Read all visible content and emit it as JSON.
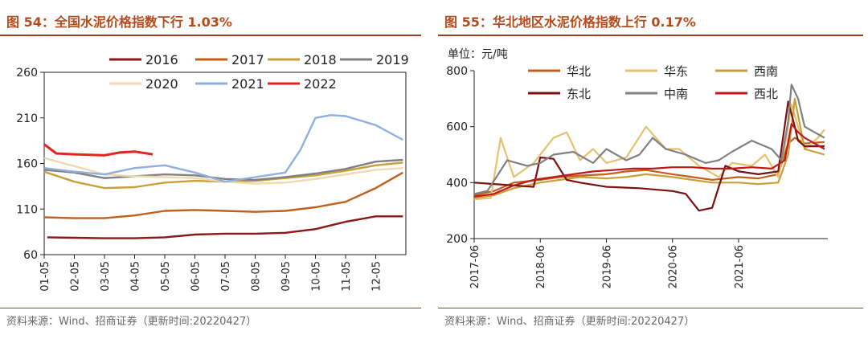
{
  "charts": [
    {
      "fig_title": "图 54：全国水泥价格指数下行 1.03%",
      "source": "资料来源：Wind、招商证券（更新时间:20220427）"
    },
    {
      "fig_title": "图 55：华北地区水泥价格指数上行 0.17%",
      "unit": "单位：元/吨",
      "source": "资料来源：Wind、招商证券（更新时间:20220427）"
    }
  ],
  "chart_data": [
    {
      "type": "line",
      "title": "图 54：全国水泥价格指数下行 1.03%",
      "ylim": [
        60,
        260
      ],
      "yticks": [
        "260",
        "210",
        "160",
        "110",
        "60"
      ],
      "xticks": [
        "01-05",
        "02-05",
        "03-05",
        "04-05",
        "05-05",
        "06-05",
        "07-05",
        "08-05",
        "09-05",
        "10-05",
        "11-05",
        "12-05"
      ],
      "grid": false,
      "legend": "top",
      "series": [
        {
          "name": "2016",
          "color": "#8b1a1a",
          "x": [
            0.1,
            1,
            2,
            3,
            4,
            5,
            6,
            7,
            8,
            9,
            10,
            11,
            11.9
          ],
          "values": [
            79,
            78.5,
            78,
            78,
            79,
            82,
            83,
            83,
            84,
            88,
            96,
            102,
            102
          ]
        },
        {
          "name": "2017",
          "color": "#c0601a",
          "x": [
            0,
            1,
            2,
            3,
            4,
            5,
            6,
            7,
            8,
            9,
            10,
            11,
            11.9
          ],
          "values": [
            101,
            100,
            100,
            103,
            108,
            109,
            108,
            107,
            108,
            112,
            118,
            133,
            150
          ]
        },
        {
          "name": "2018",
          "color": "#c8a038",
          "x": [
            0,
            1,
            2,
            3,
            4,
            5,
            6,
            7,
            8,
            9,
            10,
            11,
            11.9
          ],
          "values": [
            151,
            140,
            133,
            134,
            139,
            141,
            140,
            141,
            144,
            147,
            152,
            158,
            161
          ]
        },
        {
          "name": "2019",
          "color": "#808080",
          "x": [
            0,
            1,
            2,
            3,
            4,
            5,
            6,
            7,
            8,
            9,
            10,
            11,
            11.9
          ],
          "values": [
            153,
            150,
            144,
            146,
            148,
            147,
            143,
            142,
            145,
            149,
            154,
            162,
            164
          ]
        },
        {
          "name": "2020",
          "color": "#efd9b0",
          "x": [
            0,
            1,
            2,
            3,
            4,
            5,
            6,
            7,
            8,
            9,
            10,
            11,
            11.9
          ],
          "values": [
            166,
            157,
            148,
            146,
            145,
            144,
            140,
            138,
            139,
            143,
            148,
            153,
            155
          ]
        },
        {
          "name": "2021",
          "color": "#8fb0dc",
          "x": [
            0,
            1,
            2,
            3,
            4,
            5,
            6,
            7,
            8,
            8.5,
            9,
            9.5,
            10,
            11,
            11.9
          ],
          "values": [
            155,
            151,
            148,
            155,
            158,
            150,
            140,
            145,
            150,
            175,
            210,
            213,
            212,
            202,
            186
          ]
        },
        {
          "name": "2022",
          "color": "#e8221c",
          "x": [
            0,
            0.4,
            1,
            2,
            2.5,
            3,
            3.6
          ],
          "values": [
            181,
            171,
            170,
            169,
            172,
            173,
            170
          ]
        }
      ]
    },
    {
      "type": "line",
      "unit": "单位：元/吨",
      "ylim": [
        200,
        800
      ],
      "yticks": [
        "800",
        "600",
        "400",
        "200"
      ],
      "xticks": [
        "2017-06",
        "2018-06",
        "2019-06",
        "2020-06",
        "2021-06"
      ],
      "grid": false,
      "legend": "top",
      "series": [
        {
          "name": "华北",
          "color": "#c0601a",
          "x": [
            2017.0,
            2017.3,
            2017.6,
            2018.0,
            2018.3,
            2018.6,
            2019.0,
            2019.3,
            2019.6,
            2020.0,
            2020.3,
            2020.6,
            2021.0,
            2021.3,
            2021.6,
            2021.75,
            2021.85,
            2022.0,
            2022.3
          ],
          "values": [
            355,
            370,
            400,
            410,
            420,
            425,
            430,
            440,
            445,
            430,
            420,
            410,
            420,
            415,
            430,
            540,
            560,
            540,
            545
          ]
        },
        {
          "name": "华东",
          "color": "#e8c070",
          "x": [
            2017.0,
            2017.25,
            2017.4,
            2017.6,
            2017.9,
            2018.2,
            2018.4,
            2018.6,
            2018.8,
            2019.0,
            2019.3,
            2019.6,
            2019.9,
            2020.1,
            2020.4,
            2020.7,
            2020.9,
            2021.2,
            2021.4,
            2021.6,
            2021.7,
            2021.8,
            2021.9,
            2022.0,
            2022.2,
            2022.3
          ],
          "values": [
            340,
            345,
            560,
            420,
            470,
            560,
            580,
            480,
            520,
            470,
            490,
            600,
            520,
            520,
            460,
            420,
            470,
            460,
            500,
            420,
            530,
            680,
            600,
            520,
            560,
            590
          ]
        },
        {
          "name": "西南",
          "color": "#c8a038",
          "x": [
            2017.0,
            2017.3,
            2017.6,
            2018.0,
            2018.3,
            2018.6,
            2019.0,
            2019.3,
            2019.6,
            2020.0,
            2020.3,
            2020.6,
            2021.0,
            2021.3,
            2021.6,
            2021.75,
            2021.85,
            2022.0,
            2022.3
          ],
          "values": [
            345,
            355,
            380,
            400,
            410,
            420,
            415,
            420,
            430,
            420,
            410,
            400,
            400,
            395,
            400,
            500,
            700,
            520,
            500
          ]
        },
        {
          "name": "东北",
          "color": "#7a1010",
          "x": [
            2017.0,
            2017.3,
            2017.6,
            2017.9,
            2018.0,
            2018.2,
            2018.4,
            2018.6,
            2019.0,
            2019.5,
            2020.0,
            2020.2,
            2020.4,
            2020.6,
            2020.8,
            2021.0,
            2021.3,
            2021.6,
            2021.75,
            2021.85,
            2021.9,
            2022.0,
            2022.3
          ],
          "values": [
            400,
            395,
            390,
            385,
            490,
            485,
            410,
            400,
            385,
            380,
            370,
            360,
            300,
            310,
            460,
            440,
            430,
            440,
            690,
            600,
            550,
            530,
            530
          ]
        },
        {
          "name": "中南",
          "color": "#808080",
          "x": [
            2017.0,
            2017.2,
            2017.5,
            2017.8,
            2018.0,
            2018.2,
            2018.5,
            2018.8,
            2019.0,
            2019.3,
            2019.5,
            2019.7,
            2019.9,
            2020.2,
            2020.5,
            2020.7,
            2020.9,
            2021.2,
            2021.5,
            2021.65,
            2021.75,
            2021.8,
            2021.9,
            2022.0,
            2022.3
          ],
          "values": [
            360,
            370,
            480,
            460,
            470,
            500,
            510,
            470,
            520,
            480,
            500,
            560,
            520,
            500,
            470,
            480,
            510,
            550,
            520,
            480,
            620,
            750,
            700,
            600,
            560
          ]
        },
        {
          "name": "西北",
          "color": "#c01818",
          "x": [
            2017.0,
            2017.3,
            2017.6,
            2017.9,
            2018.2,
            2018.5,
            2018.8,
            2019.1,
            2019.4,
            2019.7,
            2020.0,
            2020.3,
            2020.6,
            2020.9,
            2021.2,
            2021.5,
            2021.7,
            2021.8,
            2021.9,
            2022.0,
            2022.3
          ],
          "values": [
            350,
            360,
            390,
            410,
            420,
            430,
            440,
            445,
            450,
            450,
            455,
            455,
            450,
            450,
            455,
            450,
            480,
            610,
            580,
            560,
            520
          ]
        }
      ]
    }
  ]
}
